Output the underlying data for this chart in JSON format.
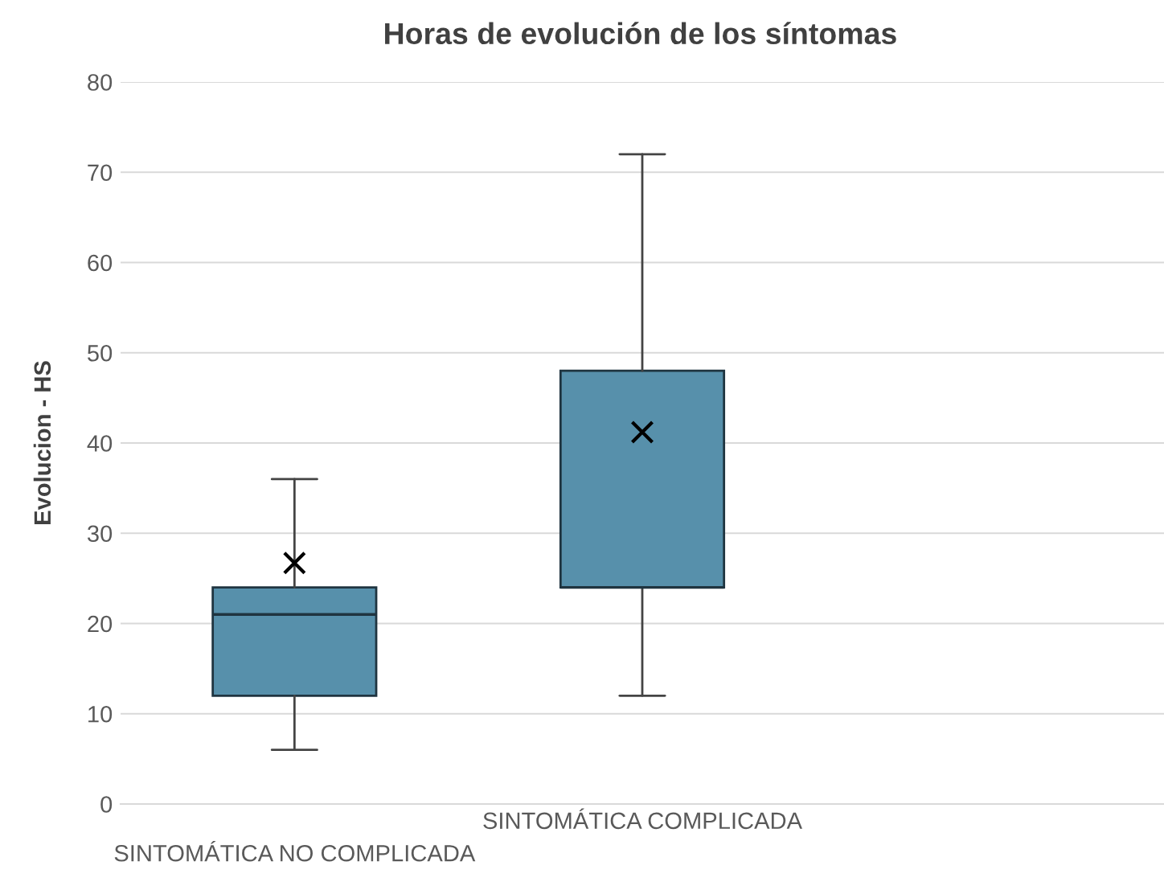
{
  "chart_data": {
    "type": "box",
    "title": "Horas de evolución de los síntomas",
    "ylabel": "Evolucion - HS",
    "categories": [
      "SINTOMÁTICA NO COMPLICADA",
      "SINTOMÁTICA COMPLICADA",
      null
    ],
    "boxes": [
      {
        "low": 6,
        "q1": 12,
        "median": 21,
        "q3": 24,
        "high": 36,
        "mean": 26.7
      },
      {
        "low": 12,
        "q1": 24,
        "median": 24,
        "q3": 48,
        "high": 72,
        "mean": 41.2
      },
      null
    ],
    "color": "#5790ab",
    "ylim": [
      0,
      80
    ],
    "yticks": [
      0,
      10,
      20,
      30,
      40,
      50,
      60,
      70,
      80
    ],
    "grid": "y",
    "marker": "cross"
  }
}
